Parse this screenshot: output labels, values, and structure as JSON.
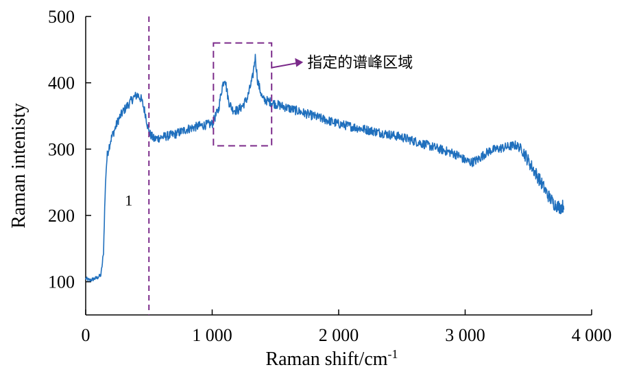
{
  "chart_data": {
    "type": "line",
    "title": "",
    "xlabel": "Raman shift/cm",
    "xlabel_superscript": "-1",
    "ylabel": "Raman intenisty",
    "xlim": [
      0,
      4000
    ],
    "ylim": [
      50,
      500
    ],
    "x_ticks": [
      0,
      1000,
      2000,
      3000,
      4000
    ],
    "x_tick_labels": [
      "0",
      "1 000",
      "2 000",
      "3 000",
      "4 000"
    ],
    "y_ticks": [
      100,
      200,
      300,
      400,
      500
    ],
    "y_tick_labels": [
      "100",
      "200",
      "300",
      "400",
      "500"
    ],
    "grid": false,
    "legend": "none",
    "series_color": "#1f6fbd",
    "annotation_color": "#7b2a8a",
    "series": [
      {
        "x": [
          0,
          30,
          60,
          90,
          120,
          140,
          150,
          160,
          170,
          180,
          200,
          230,
          260,
          300,
          340,
          380,
          410,
          440,
          470,
          500,
          540,
          600,
          700,
          800,
          900,
          1000,
          1050,
          1080,
          1100,
          1130,
          1160,
          1200,
          1240,
          1280,
          1320,
          1340,
          1360,
          1400,
          1450,
          1500,
          1600,
          1700,
          1800,
          1900,
          2000,
          2100,
          2200,
          2300,
          2400,
          2500,
          2600,
          2700,
          2800,
          2900,
          2950,
          3000,
          3050,
          3100,
          3150,
          3200,
          3250,
          3300,
          3350,
          3400,
          3450,
          3500,
          3550,
          3600,
          3650,
          3700,
          3750,
          3780
        ],
        "y": [
          105,
          102,
          104,
          106,
          110,
          140,
          210,
          265,
          290,
          300,
          315,
          330,
          345,
          358,
          368,
          378,
          382,
          375,
          355,
          325,
          315,
          318,
          322,
          330,
          335,
          338,
          360,
          395,
          408,
          372,
          360,
          358,
          365,
          378,
          408,
          440,
          402,
          375,
          372,
          368,
          362,
          356,
          350,
          344,
          338,
          334,
          330,
          326,
          322,
          318,
          312,
          306,
          300,
          294,
          290,
          283,
          280,
          284,
          292,
          298,
          300,
          302,
          304,
          306,
          300,
          282,
          266,
          250,
          232,
          218,
          212,
          215
        ]
      }
    ],
    "annotations": [
      {
        "type": "vline",
        "x": 500,
        "style": "dashed"
      },
      {
        "type": "rect",
        "x0": 1010,
        "x1": 1470,
        "y0": 305,
        "y1": 460,
        "style": "dashed"
      },
      {
        "type": "arrow",
        "label": "指定的谱峰区域"
      },
      {
        "type": "region-label",
        "x": 340,
        "y": 215,
        "label": "1"
      }
    ]
  }
}
